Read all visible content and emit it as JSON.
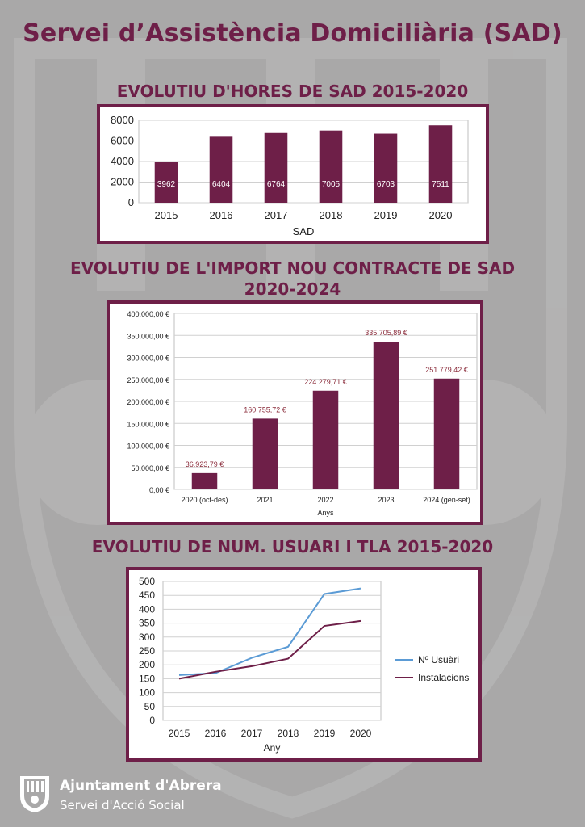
{
  "page": {
    "title": "Servei d’Assistència Domiciliària (SAD)",
    "colors": {
      "accent": "#6e1f48",
      "background": "#a9a8a8",
      "series_users": "#5b9bd5"
    }
  },
  "footer": {
    "name": "Ajuntament d'Abrera",
    "subtitle": "Servei d'Acció Social",
    "logo_icon": "municipal-shield-icon"
  },
  "chart_data": [
    {
      "type": "bar",
      "title": "EVOLUTIU D'HORES DE SAD 2015-2020",
      "xlabel": "SAD",
      "ylabel": "",
      "categories": [
        "2015",
        "2016",
        "2017",
        "2018",
        "2019",
        "2020"
      ],
      "values": [
        3962,
        6404,
        6764,
        7005,
        6703,
        7511
      ],
      "data_labels": [
        "3962",
        "6404",
        "6764",
        "7005",
        "6703",
        "7511"
      ],
      "ylim": [
        0,
        8000
      ],
      "yticks": [
        "0",
        "2000",
        "4000",
        "6000",
        "8000"
      ],
      "grid": true,
      "color": "#6e1f48"
    },
    {
      "type": "bar",
      "title": "EVOLUTIU DE L'IMPORT NOU CONTRACTE DE SAD 2020-2024",
      "xlabel": "Anys",
      "ylabel": "",
      "categories": [
        "2020 (oct-des)",
        "2021",
        "2022",
        "2023",
        "2024 (gen-set)"
      ],
      "values": [
        36923.79,
        160755.72,
        224279.71,
        335705.89,
        251779.42
      ],
      "data_labels": [
        "36.923,79 €",
        "160.755,72 €",
        "224.279,71 €",
        "335.705,89 €",
        "251.779,42 €"
      ],
      "ylim": [
        0,
        400000
      ],
      "yticks": [
        "0,00 €",
        "50.000,00 €",
        "100.000,00 €",
        "150.000,00 €",
        "200.000,00 €",
        "250.000,00 €",
        "300.000,00 €",
        "350.000,00 €",
        "400.000,00 €"
      ],
      "grid": true,
      "color": "#6e1f48"
    },
    {
      "type": "line",
      "title": "EVOLUTIU DE NUM. USUARI I TLA 2015-2020",
      "xlabel": "Any",
      "ylabel": "",
      "x": [
        "2015",
        "2016",
        "2017",
        "2018",
        "2019",
        "2020"
      ],
      "series": [
        {
          "name": "Nº Usuàri",
          "values": [
            163,
            170,
            225,
            265,
            455,
            475
          ],
          "color": "#5b9bd5"
        },
        {
          "name": "Instalacions",
          "values": [
            150,
            175,
            195,
            222,
            340,
            358
          ],
          "color": "#6e1f48"
        }
      ],
      "ylim": [
        0,
        500
      ],
      "yticks": [
        "0",
        "50",
        "100",
        "150",
        "200",
        "250",
        "300",
        "350",
        "400",
        "450",
        "500"
      ],
      "legend": "right",
      "grid": true
    }
  ]
}
